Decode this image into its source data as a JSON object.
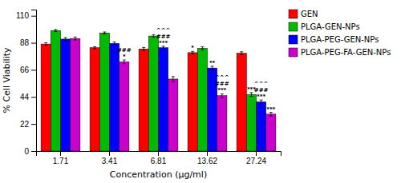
{
  "chart_data": {
    "type": "bar",
    "xlabel": "Concentration (µg/ml)",
    "ylabel": "% Cell Viability",
    "categories": [
      "1.71",
      "3.41",
      "6.81",
      "13.62",
      "27.24"
    ],
    "series": [
      {
        "name": "GEN",
        "color": "#FF0000",
        "values": [
          87.0,
          84.0,
          83.0,
          80.0,
          79.5
        ],
        "errors": [
          1.0,
          0.8,
          1.2,
          1.0,
          1.2
        ]
      },
      {
        "name": "PLGA-GEN-NPs",
        "color": "#00BB00",
        "values": [
          98.0,
          96.0,
          93.5,
          83.5,
          46.0
        ],
        "errors": [
          0.8,
          0.8,
          1.0,
          1.2,
          1.5
        ]
      },
      {
        "name": "PLGA-PEG-GEN-NPs",
        "color": "#0000FF",
        "values": [
          91.0,
          87.5,
          84.0,
          67.5,
          40.0
        ],
        "errors": [
          1.2,
          1.2,
          1.2,
          1.5,
          1.5
        ]
      },
      {
        "name": "PLGA-PEG-FA-GEN-NPs",
        "color": "#CC00CC",
        "values": [
          91.5,
          72.5,
          58.5,
          45.0,
          30.0
        ],
        "errors": [
          1.2,
          1.5,
          2.0,
          1.5,
          1.5
        ]
      }
    ],
    "ylim": [
      0,
      115
    ],
    "yticks": [
      0,
      22,
      44,
      66,
      88,
      110
    ],
    "grid": false,
    "legend": "right",
    "annotations": [
      {
        "category": "3.41",
        "series": "PLGA-PEG-FA-GEN-NPs",
        "text": [
          "*",
          "###"
        ]
      },
      {
        "category": "6.81",
        "series": "PLGA-PEG-GEN-NPs",
        "text": [
          "***",
          "###",
          "^^^"
        ]
      },
      {
        "category": "13.62",
        "series": "GEN",
        "text": [
          "*"
        ]
      },
      {
        "category": "13.62",
        "series": "PLGA-PEG-GEN-NPs",
        "text": [
          "**"
        ]
      },
      {
        "category": "13.62",
        "series": "PLGA-PEG-FA-GEN-NPs",
        "text": [
          "***",
          "###",
          "^^^"
        ]
      },
      {
        "category": "27.24",
        "series": "PLGA-GEN-NPs",
        "text": [
          "***"
        ]
      },
      {
        "category": "27.24",
        "series": "PLGA-PEG-GEN-NPs",
        "text": [
          "***",
          "###",
          "^^^"
        ]
      },
      {
        "category": "27.24",
        "series": "PLGA-PEG-FA-GEN-NPs",
        "text": [
          "***"
        ]
      }
    ]
  }
}
